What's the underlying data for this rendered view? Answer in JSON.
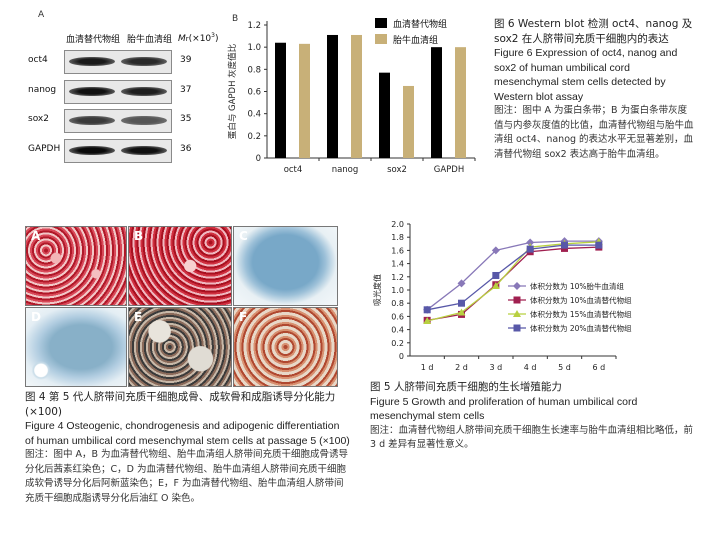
{
  "western_blot": {
    "panel_label": "A",
    "col1": "血清替代物组",
    "col2": "胎牛血清组",
    "mw_header": "Mr(×10³)",
    "rows": [
      {
        "name": "oct4",
        "mw": "39"
      },
      {
        "name": "nanog",
        "mw": "37"
      },
      {
        "name": "sox2",
        "mw": "35"
      },
      {
        "name": "GAPDH",
        "mw": "36"
      }
    ]
  },
  "bar_panel_label": "B",
  "chart_data": [
    {
      "type": "bar",
      "categories": [
        "oct4",
        "nanog",
        "sox2",
        "GAPDH"
      ],
      "series": [
        {
          "name": "血清替代物组",
          "values": [
            1.04,
            1.11,
            0.77,
            1.0
          ],
          "color": "#000000"
        },
        {
          "name": "胎牛血清组",
          "values": [
            1.03,
            1.11,
            0.65,
            1.0
          ],
          "color": "#c8b078"
        }
      ],
      "ylabel": "蛋白与 GAPDH 灰度值比",
      "ylim": [
        0,
        1.2
      ],
      "yticks": [
        "0",
        "0.2",
        "0.4",
        "0.6",
        "0.8",
        "1.0",
        "1.2"
      ],
      "legend_position": "top-right"
    },
    {
      "type": "line",
      "categories": [
        "1 d",
        "2 d",
        "3 d",
        "4 d",
        "5 d",
        "6 d"
      ],
      "series": [
        {
          "name": "体积分数为 10%胎牛血清组",
          "values": [
            0.7,
            1.1,
            1.6,
            1.72,
            1.74,
            1.74
          ],
          "color": "#8878b8",
          "marker": "diamond"
        },
        {
          "name": "体积分数为 10%血清替代物组",
          "values": [
            0.54,
            0.63,
            1.08,
            1.58,
            1.63,
            1.65
          ],
          "color": "#a02050",
          "marker": "square"
        },
        {
          "name": "体积分数为 15%血清替代物组",
          "values": [
            0.53,
            0.66,
            1.06,
            1.65,
            1.7,
            1.73
          ],
          "color": "#b8d040",
          "marker": "triangle"
        },
        {
          "name": "体积分数为 20%血清替代物组",
          "values": [
            0.7,
            0.8,
            1.22,
            1.62,
            1.68,
            1.68
          ],
          "color": "#5858a8",
          "marker": "square"
        }
      ],
      "ylabel": "吸光度值",
      "ylim": [
        0,
        2.0
      ],
      "yticks": [
        "0",
        "0.2",
        "0.4",
        "0.6",
        "0.8",
        "1.0",
        "1.2",
        "1.4",
        "1.6",
        "1.8",
        "2.0"
      ],
      "legend_position": "right"
    }
  ],
  "figure6_caption": {
    "zh_title": "图 6   Western blot 检测 oct4、nanog 及 sox2 在人脐带间充质干细胞内的表达",
    "en_title": "Figure 6   Expression of oct4, nanog and sox2 of human umbilical cord mesenchymal stem cells detected by Western blot assay",
    "note": "图注：图中 A 为蛋白条带；B 为蛋白条带灰度值与内参灰度值的比值，血清替代物组与胎牛血清组 oct4、nanog 的表达水平无显著差别，血清替代物组 sox2 表达高于胎牛血清组。"
  },
  "micrographs": {
    "labels": [
      "A",
      "B",
      "C",
      "D",
      "E",
      "F"
    ]
  },
  "figure4_caption": {
    "zh_title": "图 4   第 5 代人脐带间充质干细胞成骨、成软骨和成脂诱导分化能力(×100)",
    "en_title": "Figure 4   Osteogenic, chondrogenesis and adipogenic differentiation of human umbilical cord mesenchymal stem cells at passage 5 (×100)",
    "note": "图注：图中 A，B 为血清替代物组、胎牛血清组人脐带间充质干细胞成骨诱导分化后茜素红染色；C，D 为血清替代物组、胎牛血清组人脐带间充质干细胞成软骨诱导分化后阿新蓝染色；E，F 为血清替代物组、胎牛血清组人脐带间充质干细胞成脂诱导分化后油红 O 染色。"
  },
  "figure5_caption": {
    "zh_title": "图 5   人脐带间充质干细胞的生长增殖能力",
    "en_title": "Figure 5   Growth and proliferation of human umbilical cord mesenchymal stem cells",
    "note": "图注：血清替代物组人脐带间充质干细胞生长速率与胎牛血清组相比略低，前 3 d 差异有显著性意义。"
  }
}
